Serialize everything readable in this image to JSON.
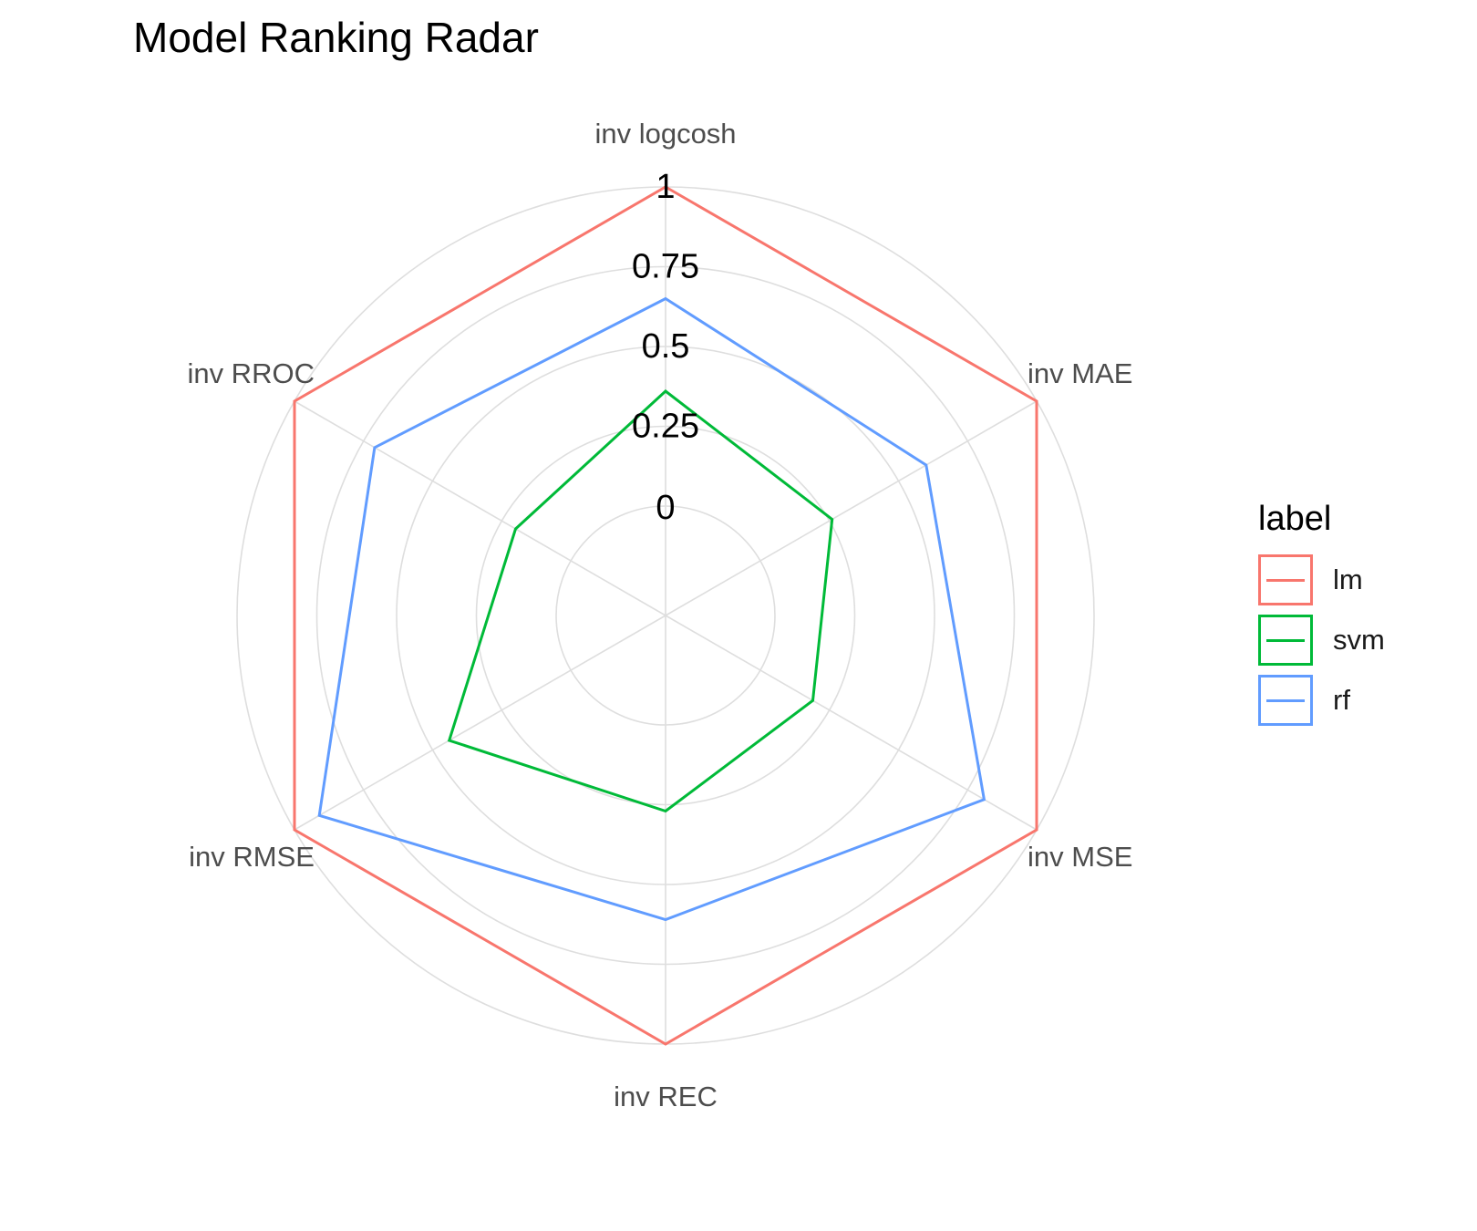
{
  "chart_data": {
    "type": "radar",
    "title": "Model Ranking Radar",
    "axes": [
      "inv logcosh",
      "inv MAE",
      "inv MSE",
      "inv REC",
      "inv RMSE",
      "inv RROC"
    ],
    "radial_ticks": [
      "0",
      "0.25",
      "0.5",
      "0.75",
      "1"
    ],
    "radial_tick_values": [
      0,
      0.25,
      0.5,
      0.75,
      1
    ],
    "rlim": [
      0,
      1
    ],
    "grid": true,
    "legend_title": "label",
    "legend_position": "right",
    "series": [
      {
        "name": "lm",
        "color": "#F8766D",
        "values": [
          1.0,
          1.0,
          1.0,
          1.0,
          1.0,
          1.0
        ]
      },
      {
        "name": "svm",
        "color": "#00BA38",
        "values": [
          0.36,
          0.26,
          0.19,
          0.27,
          0.44,
          0.2
        ]
      },
      {
        "name": "rf",
        "color": "#619CFF",
        "values": [
          0.65,
          0.6,
          0.81,
          0.61,
          0.91,
          0.71
        ]
      }
    ]
  }
}
